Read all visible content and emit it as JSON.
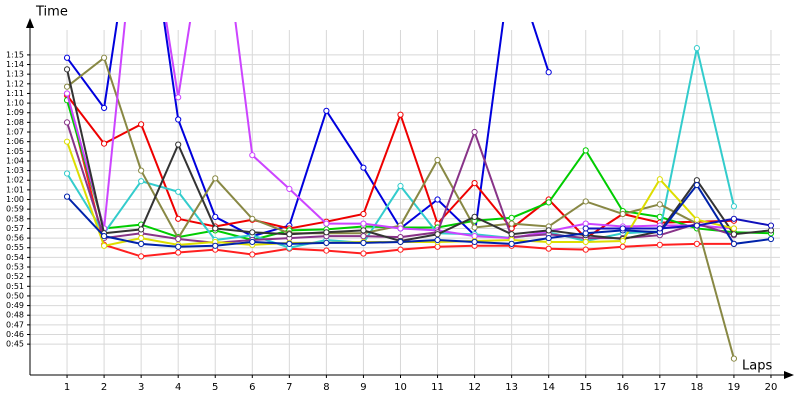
{
  "chart_data": {
    "type": "line",
    "y_label": "Time",
    "x_label": "Laps",
    "xlim": [
      0,
      20.5
    ],
    "ylim": [
      41.8,
      78.1
    ],
    "xticks": [
      1,
      2,
      3,
      4,
      5,
      6,
      7,
      8,
      9,
      10,
      11,
      12,
      13,
      14,
      15,
      16,
      17,
      18,
      19,
      20
    ],
    "yticks": [
      {
        "value": 45,
        "label": "0:45"
      },
      {
        "value": 46,
        "label": "0:46"
      },
      {
        "value": 47,
        "label": "0:47"
      },
      {
        "value": 48,
        "label": "0:48"
      },
      {
        "value": 49,
        "label": "0:49"
      },
      {
        "value": 50,
        "label": "0:50"
      },
      {
        "value": 51,
        "label": "0:51"
      },
      {
        "value": 52,
        "label": "0:52"
      },
      {
        "value": 53,
        "label": "0:53"
      },
      {
        "value": 54,
        "label": "0:54"
      },
      {
        "value": 55,
        "label": "0:55"
      },
      {
        "value": 56,
        "label": "0:56"
      },
      {
        "value": 57,
        "label": "0:57"
      },
      {
        "value": 58,
        "label": "0:58"
      },
      {
        "value": 59,
        "label": "0:59"
      },
      {
        "value": 60,
        "label": "1:00"
      },
      {
        "value": 61,
        "label": "1:01"
      },
      {
        "value": 62,
        "label": "1:02"
      },
      {
        "value": 63,
        "label": "1:03"
      },
      {
        "value": 64,
        "label": "1:04"
      },
      {
        "value": 65,
        "label": "1:05"
      },
      {
        "value": 66,
        "label": "1:06"
      },
      {
        "value": 67,
        "label": "1:07"
      },
      {
        "value": 68,
        "label": "1:08"
      },
      {
        "value": 69,
        "label": "1:09"
      },
      {
        "value": 70,
        "label": "1:10"
      },
      {
        "value": 71,
        "label": "1:11"
      },
      {
        "value": 72,
        "label": "1:12"
      },
      {
        "value": 73,
        "label": "1:13"
      },
      {
        "value": 74,
        "label": "1:14"
      },
      {
        "value": 75,
        "label": "1:15"
      }
    ],
    "grid": true,
    "x": [
      1,
      2,
      3,
      4,
      5,
      6,
      7,
      8,
      9,
      10,
      11,
      12,
      13,
      14,
      15,
      16,
      17,
      18,
      19,
      20
    ],
    "series": [
      {
        "color": "#0000dd",
        "values": [
          74.7,
          69.5,
          95,
          68.3,
          58.2,
          56.2,
          57.3,
          69.2,
          63.3,
          57.0,
          60.0,
          56.3,
          85,
          73.2,
          null,
          null,
          null,
          null,
          null,
          null
        ]
      },
      {
        "color": "#ee0000",
        "values": [
          70.8,
          65.8,
          67.8,
          58.0,
          57.2,
          57.9,
          57.0,
          57.7,
          58.5,
          68.8,
          57.5,
          61.7,
          57.0,
          60.0,
          56.0,
          58.5,
          57.6,
          57.7,
          57.8,
          null
        ]
      },
      {
        "color": "#ff2020",
        "values": [
          70.9,
          55.3,
          54.1,
          54.5,
          54.8,
          54.3,
          54.9,
          54.7,
          54.4,
          54.8,
          55.1,
          55.2,
          55.2,
          54.9,
          54.8,
          55.1,
          55.3,
          55.4,
          55.4,
          null
        ]
      },
      {
        "color": "#00cc00",
        "values": [
          70.3,
          57.0,
          57.4,
          56.1,
          56.8,
          55.8,
          56.8,
          56.9,
          57.2,
          57.1,
          57.1,
          57.8,
          58.1,
          59.7,
          65.1,
          58.8,
          58.2,
          57.0,
          56.6,
          56.5
        ]
      },
      {
        "color": "#33cccc",
        "values": [
          62.7,
          56.5,
          61.9,
          60.8,
          55.8,
          56.3,
          55.0,
          55.8,
          55.5,
          61.4,
          56.5,
          56.4,
          56.0,
          56.6,
          55.7,
          56.5,
          56.7,
          75.7,
          59.3,
          null
        ]
      },
      {
        "color": "#888844",
        "values": [
          71.7,
          74.7,
          63.0,
          56.0,
          62.2,
          58.0,
          56.5,
          56.5,
          56.5,
          57.3,
          64.1,
          57.1,
          57.5,
          57.2,
          59.8,
          58.5,
          59.5,
          57.5,
          43.5,
          null
        ]
      },
      {
        "color": "#cc44ff",
        "values": [
          71.0,
          57.0,
          95,
          70.6,
          95,
          64.6,
          61.1,
          57.5,
          57.5,
          57.0,
          56.8,
          56.2,
          56.0,
          56.7,
          57.5,
          57.2,
          57.3,
          57.3,
          57.0,
          null
        ]
      },
      {
        "color": "#883388",
        "values": [
          68.0,
          56.0,
          56.5,
          55.9,
          55.5,
          55.8,
          56.0,
          56.2,
          56.2,
          56.1,
          56.6,
          67.0,
          56.1,
          56.4,
          56.0,
          56.0,
          56.3,
          57.5,
          56.3,
          null
        ]
      },
      {
        "color": "#333333",
        "values": [
          73.5,
          56.5,
          56.9,
          65.7,
          57.0,
          56.6,
          56.4,
          56.6,
          56.8,
          55.7,
          56.4,
          58.2,
          56.4,
          56.8,
          56.3,
          55.9,
          56.7,
          62.0,
          56.4,
          56.8
        ]
      },
      {
        "color": "#dddd00",
        "values": [
          66.0,
          55.2,
          56.0,
          55.3,
          55.6,
          55.3,
          55.5,
          55.5,
          55.6,
          55.6,
          55.6,
          55.7,
          55.8,
          55.6,
          55.6,
          55.7,
          62.1,
          57.9,
          57.0,
          null
        ]
      },
      {
        "color": "#0022aa",
        "values": [
          60.3,
          56.2,
          55.4,
          55.1,
          55.2,
          55.6,
          55.4,
          55.5,
          55.5,
          55.6,
          55.8,
          55.6,
          55.4,
          56.0,
          56.5,
          56.8,
          56.6,
          61.5,
          55.4,
          55.9
        ]
      },
      {
        "color": "#1111bb",
        "values": [
          null,
          null,
          null,
          null,
          null,
          null,
          null,
          null,
          null,
          null,
          null,
          null,
          null,
          null,
          57.0,
          57.0,
          57.0,
          57.3,
          58.0,
          57.3
        ]
      }
    ]
  }
}
